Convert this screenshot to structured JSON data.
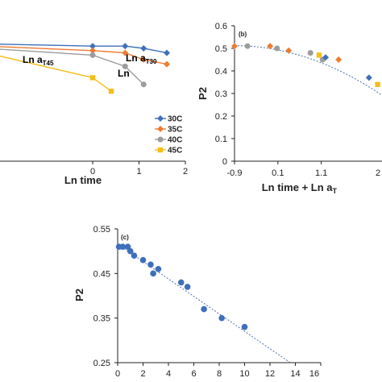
{
  "colors": {
    "s30": "#3e6fba",
    "s35": "#ee7b30",
    "s40": "#9c9c9c",
    "s45": "#f5be1a",
    "axis": "#222222",
    "trend": "#4a6fb5"
  },
  "chart_data": [
    {
      "id": "a",
      "type": "line",
      "xlabel": "Ln time",
      "xlim": [
        -2,
        2
      ],
      "ylim": [
        0,
        0.6
      ],
      "xticks": [
        0,
        1,
        2
      ],
      "legend_position": "right",
      "legend": [
        "30C",
        "35C",
        "40C",
        "45C"
      ],
      "series": [
        {
          "name": "30C",
          "key": "s30",
          "x": [
            -2.3,
            0,
            0.7,
            1.1,
            1.6
          ],
          "y": [
            0.52,
            0.51,
            0.51,
            0.5,
            0.48
          ]
        },
        {
          "name": "35C",
          "key": "s35",
          "x": [
            -2.3,
            0,
            0.7,
            1.1,
            1.6
          ],
          "y": [
            0.51,
            0.49,
            0.48,
            0.45,
            0.43
          ]
        },
        {
          "name": "40C",
          "key": "s40",
          "x": [
            -2.3,
            0,
            0.7,
            1.1
          ],
          "y": [
            0.5,
            0.47,
            0.42,
            0.34
          ]
        },
        {
          "name": "45C",
          "key": "s45",
          "x": [
            -2.3,
            0,
            0.4
          ],
          "y": [
            0.48,
            0.37,
            0.31
          ]
        }
      ],
      "annotations": [
        {
          "base": "Ln a",
          "sub": "T30",
          "color": "#2c4f8a"
        },
        {
          "base": "Ln a",
          "sub": "T45",
          "color": "#e3a800"
        },
        {
          "base": "Ln",
          "sub": "",
          "color": "#9c9c9c"
        }
      ]
    },
    {
      "id": "b",
      "type": "scatter",
      "panel_label": "(b)",
      "xlabel_base": "Ln time + Ln a",
      "xlabel_sub": "T",
      "ylabel": "P2",
      "xlim": [
        -0.9,
        2.5
      ],
      "ylim": [
        0,
        0.6
      ],
      "xticks": [
        -0.9,
        0.1,
        1.1
      ],
      "xtick_labels": [
        "-0.9",
        "0.1",
        "1.1"
      ],
      "edge_tick_label": "2",
      "yticks": [
        0,
        0.1,
        0.2,
        0.3,
        0.4,
        0.5,
        0.6
      ],
      "ytick_labels": [
        "0",
        "0.1",
        "0.2",
        "0.3",
        "0.4",
        "0.5",
        "0.6"
      ],
      "trend": "dotted",
      "points": [
        {
          "x": -0.9,
          "y": 0.51,
          "key": "s35"
        },
        {
          "x": -0.6,
          "y": 0.51,
          "key": "s40"
        },
        {
          "x": -0.08,
          "y": 0.51,
          "key": "s35"
        },
        {
          "x": 0.08,
          "y": 0.5,
          "key": "s40"
        },
        {
          "x": 0.35,
          "y": 0.49,
          "key": "s35"
        },
        {
          "x": 0.85,
          "y": 0.48,
          "key": "s40"
        },
        {
          "x": 1.05,
          "y": 0.47,
          "key": "s45"
        },
        {
          "x": 1.13,
          "y": 0.45,
          "key": "s40"
        },
        {
          "x": 1.2,
          "y": 0.46,
          "key": "s30"
        },
        {
          "x": 1.5,
          "y": 0.45,
          "key": "s35"
        },
        {
          "x": 2.2,
          "y": 0.37,
          "key": "s30"
        },
        {
          "x": 2.4,
          "y": 0.34,
          "key": "s45"
        }
      ]
    },
    {
      "id": "c",
      "type": "scatter",
      "panel_label": "(c)",
      "ylabel": "P2",
      "xlim": [
        0,
        16
      ],
      "ylim": [
        0.25,
        0.55
      ],
      "xticks": [
        0,
        2,
        4,
        6,
        8,
        10,
        12,
        14,
        16
      ],
      "yticks": [
        0.25,
        0.35,
        0.45,
        0.55
      ],
      "ytick_labels": [
        "0.25",
        "0.35",
        "0.45",
        "0.55"
      ],
      "trend": "dotted",
      "trend_line": {
        "x": [
          0.3,
          13.6
        ],
        "y": [
          0.51,
          0.25
        ]
      },
      "points": [
        {
          "x": 0.1,
          "y": 0.51
        },
        {
          "x": 0.4,
          "y": 0.51
        },
        {
          "x": 0.8,
          "y": 0.51
        },
        {
          "x": 1.0,
          "y": 0.5
        },
        {
          "x": 1.3,
          "y": 0.49
        },
        {
          "x": 2.0,
          "y": 0.48
        },
        {
          "x": 2.6,
          "y": 0.47
        },
        {
          "x": 2.8,
          "y": 0.45
        },
        {
          "x": 3.2,
          "y": 0.46
        },
        {
          "x": 5.0,
          "y": 0.43
        },
        {
          "x": 5.5,
          "y": 0.42
        },
        {
          "x": 6.8,
          "y": 0.37
        },
        {
          "x": 8.2,
          "y": 0.35
        },
        {
          "x": 10.0,
          "y": 0.33
        }
      ]
    }
  ]
}
